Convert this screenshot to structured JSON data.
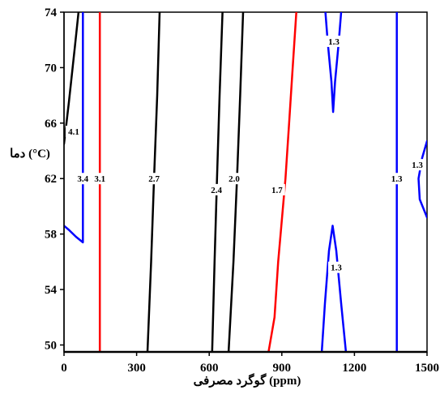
{
  "chart_data": {
    "type": "contour",
    "xlabel": "گوگرد مصرفی (ppm)",
    "ylabel": "دما (°C)",
    "xlim": [
      0,
      1500
    ],
    "ylim": [
      49.5,
      74
    ],
    "x_ticks": [
      0,
      300,
      600,
      900,
      1200,
      1500
    ],
    "y_ticks": [
      50,
      54,
      58,
      62,
      66,
      70,
      74
    ],
    "grid": false,
    "contours": [
      {
        "level": "4.1",
        "color": "#000000",
        "points": [
          [
            0,
            64.5
          ],
          [
            20,
            67.5
          ],
          [
            45,
            71.5
          ],
          [
            60,
            74
          ]
        ],
        "labels": [
          {
            "text": "4.1",
            "x": 40,
            "y": 65.4
          }
        ]
      },
      {
        "level": "3.4",
        "color": "#0000ff",
        "points": [
          [
            0,
            58.6
          ],
          [
            20,
            58.3
          ],
          [
            50,
            57.8
          ],
          [
            78,
            57.4
          ],
          [
            78,
            74
          ]
        ],
        "labels": [
          {
            "text": "3.4",
            "x": 78,
            "y": 62
          }
        ]
      },
      {
        "level": "3.1",
        "color": "#ff0000",
        "points": [
          [
            148,
            49.5
          ],
          [
            148,
            74
          ]
        ],
        "labels": [
          {
            "text": "3.1",
            "x": 148,
            "y": 62
          }
        ]
      },
      {
        "level": "2.7",
        "color": "#000000",
        "points": [
          [
            345,
            49.5
          ],
          [
            360,
            56
          ],
          [
            372,
            62
          ],
          [
            385,
            68
          ],
          [
            395,
            74
          ]
        ],
        "labels": [
          {
            "text": "2.7",
            "x": 372,
            "y": 62
          }
        ]
      },
      {
        "level": "2.4",
        "color": "#000000",
        "points": [
          [
            612,
            49.5
          ],
          [
            622,
            56
          ],
          [
            632,
            62
          ],
          [
            643,
            68
          ],
          [
            655,
            74
          ]
        ],
        "labels": [
          {
            "text": "2.4",
            "x": 630,
            "y": 61.2
          }
        ]
      },
      {
        "level": "2.0",
        "color": "#000000",
        "points": [
          [
            680,
            49.5
          ],
          [
            700,
            56
          ],
          [
            715,
            62
          ],
          [
            728,
            68
          ],
          [
            740,
            74
          ]
        ],
        "labels": [
          {
            "text": "2.0",
            "x": 703,
            "y": 62
          }
        ]
      },
      {
        "level": "1.7",
        "color": "#ff0000",
        "points": [
          [
            845,
            49.5
          ],
          [
            870,
            52
          ],
          [
            885,
            56
          ],
          [
            895,
            58
          ],
          [
            905,
            60
          ],
          [
            915,
            62
          ],
          [
            930,
            66
          ],
          [
            945,
            70
          ],
          [
            960,
            74
          ]
        ],
        "labels": [
          {
            "text": "1.7",
            "x": 880,
            "y": 61.2
          }
        ]
      },
      {
        "level": "1.3",
        "color": "#0000ff",
        "points": [
          [
            1080,
            74
          ],
          [
            1090,
            71.8
          ],
          [
            1105,
            69
          ],
          [
            1112,
            66.8
          ],
          [
            1120,
            69
          ],
          [
            1135,
            71.8
          ],
          [
            1145,
            74
          ]
        ],
        "labels": [
          {
            "text": "1.3",
            "x": 1115,
            "y": 71.9
          }
        ]
      },
      {
        "level": "1.3",
        "color": "#0000ff",
        "points": [
          [
            1065,
            49.5
          ],
          [
            1078,
            53
          ],
          [
            1095,
            56.8
          ],
          [
            1110,
            58.6
          ],
          [
            1125,
            56.8
          ],
          [
            1145,
            53
          ],
          [
            1165,
            49.5
          ]
        ],
        "labels": [
          {
            "text": "1.3",
            "x": 1125,
            "y": 55.6
          }
        ]
      },
      {
        "level": "1.3",
        "color": "#0000ff",
        "points": [
          [
            1375,
            49.5
          ],
          [
            1375,
            74
          ]
        ],
        "labels": [
          {
            "text": "1.3",
            "x": 1375,
            "y": 62
          }
        ]
      },
      {
        "level": "1.3",
        "color": "#0000ff",
        "points": [
          [
            1500,
            64.7
          ],
          [
            1480,
            63.5
          ],
          [
            1465,
            62
          ],
          [
            1470,
            60.5
          ],
          [
            1500,
            59.2
          ]
        ],
        "labels": [
          {
            "text": "1.3",
            "x": 1460,
            "y": 63
          }
        ]
      }
    ]
  }
}
